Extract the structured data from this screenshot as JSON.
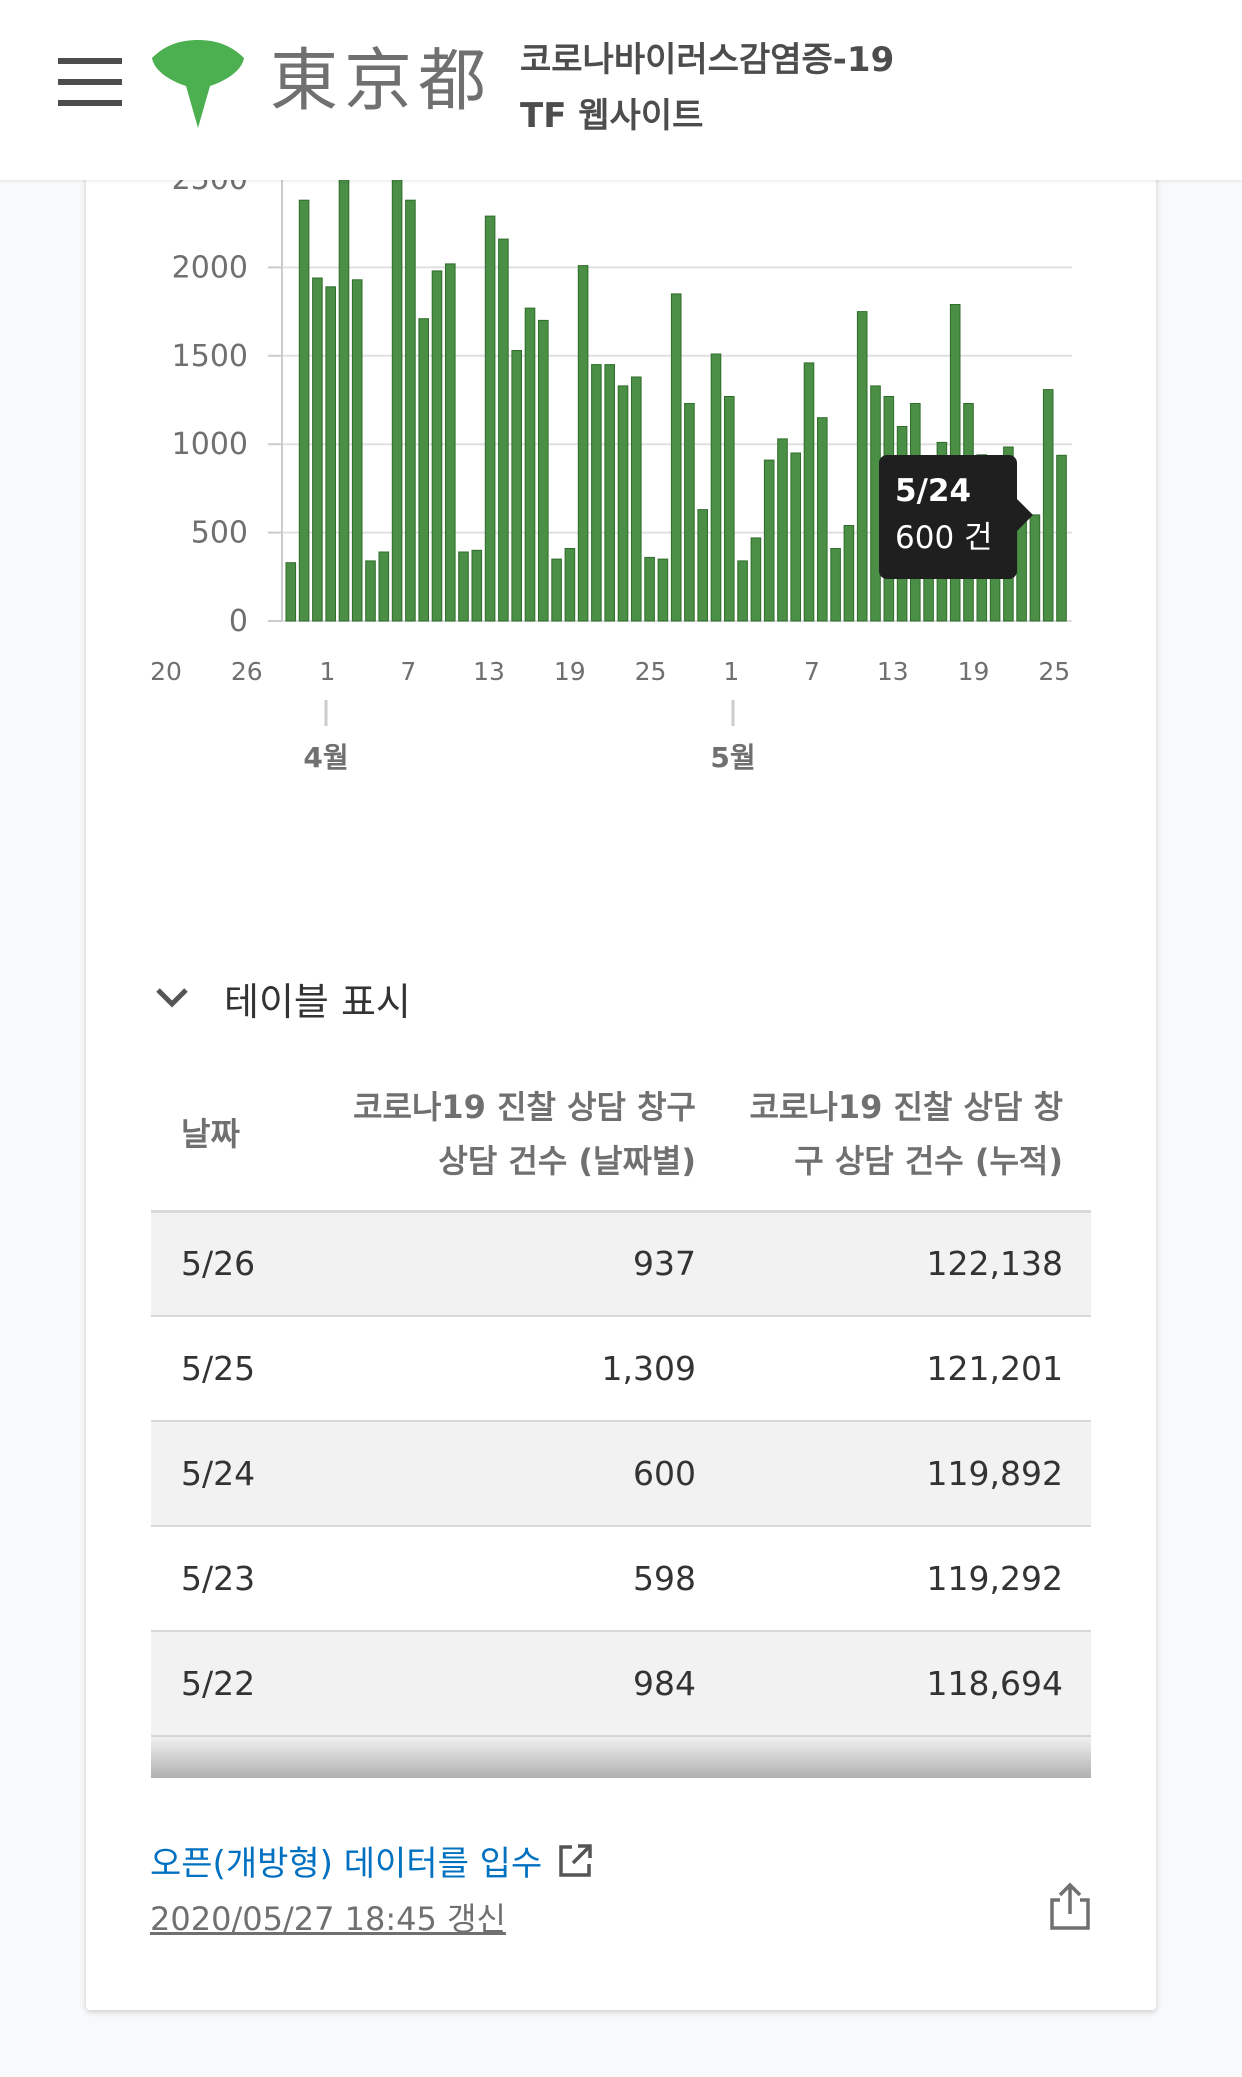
{
  "header": {
    "logo_text": "東京都",
    "title_line1": "코로나바이러스감염증-19",
    "title_line2": "TF 웹사이트"
  },
  "chart_data": {
    "type": "bar",
    "series_color": "#4a8f45",
    "y_ticks": [
      "0",
      "500",
      "1000",
      "1500",
      "2000",
      "2500"
    ],
    "ylim": [
      0,
      2500
    ],
    "x_tick_labels": [
      "20",
      "26",
      "1",
      "7",
      "13",
      "19",
      "25",
      "1",
      "7",
      "13",
      "19",
      "25"
    ],
    "month_labels": [
      "4월",
      "5월"
    ],
    "values": [
      330,
      2380,
      1940,
      1890,
      2500,
      1930,
      340,
      390,
      2510,
      2380,
      1710,
      1980,
      2020,
      390,
      400,
      2290,
      2160,
      1530,
      1770,
      1700,
      350,
      410,
      2010,
      1450,
      1450,
      1330,
      1380,
      360,
      350,
      1850,
      1230,
      630,
      1510,
      1270,
      340,
      470,
      910,
      1030,
      950,
      1460,
      1150,
      410,
      540,
      1750,
      1330,
      1270,
      1100,
      1230,
      320,
      1010,
      1790,
      1230,
      940,
      660,
      984,
      598,
      600,
      1309,
      937
    ]
  },
  "tooltip": {
    "date": "5/24",
    "value": "600 건"
  },
  "table": {
    "toggle_label": "테이블 표시",
    "headers": {
      "date": "날짜",
      "daily_l1": "코로나19 진찰 상담 창구",
      "daily_l2": "상담 건수 (날짜별)",
      "cum_l1": "코로나19 진찰 상담 창",
      "cum_l2": "구 상담 건수 (누적)"
    },
    "rows": [
      {
        "date": "5/26",
        "daily": "937",
        "cumulative": "122,138"
      },
      {
        "date": "5/25",
        "daily": "1,309",
        "cumulative": "121,201"
      },
      {
        "date": "5/24",
        "daily": "600",
        "cumulative": "119,892"
      },
      {
        "date": "5/23",
        "daily": "598",
        "cumulative": "119,292"
      },
      {
        "date": "5/22",
        "daily": "984",
        "cumulative": "118,694"
      }
    ]
  },
  "footer": {
    "open_data_label": "오픈(개방형) 데이터를 입수",
    "updated_label": "2020/05/27 18:45 갱신"
  }
}
